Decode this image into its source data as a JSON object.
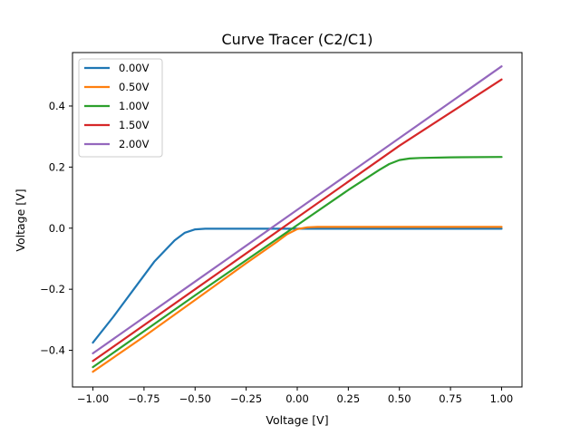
{
  "chart_data": {
    "type": "line",
    "title": "Curve Tracer (C2/C1)",
    "xlabel": "Voltage [V]",
    "ylabel": "Voltage [V]",
    "xlim": [
      -1.1,
      1.1
    ],
    "ylim": [
      -0.52,
      0.575
    ],
    "xticks": [
      -1.0,
      -0.75,
      -0.5,
      -0.25,
      0.0,
      0.25,
      0.5,
      0.75,
      1.0
    ],
    "xtick_labels": [
      "−1.00",
      "−0.75",
      "−0.50",
      "−0.25",
      "0.00",
      "0.25",
      "0.50",
      "0.75",
      "1.00"
    ],
    "yticks": [
      -0.4,
      -0.2,
      0.0,
      0.2,
      0.4
    ],
    "ytick_labels": [
      "−0.4",
      "−0.2",
      "0.0",
      "0.2",
      "0.4"
    ],
    "grid": false,
    "legend_position": "top-left",
    "series": [
      {
        "name": "0.00V",
        "color": "#1f77b4",
        "x": [
          -1.0,
          -0.9,
          -0.8,
          -0.7,
          -0.6,
          -0.55,
          -0.5,
          -0.45,
          -0.4,
          -0.3,
          -0.2,
          0.0,
          0.5,
          1.0
        ],
        "y": [
          -0.375,
          -0.29,
          -0.2,
          -0.11,
          -0.04,
          -0.015,
          -0.004,
          -0.002,
          -0.002,
          -0.002,
          -0.002,
          -0.002,
          -0.002,
          -0.002
        ]
      },
      {
        "name": "0.50V",
        "color": "#ff7f0e",
        "x": [
          -1.0,
          -0.75,
          -0.5,
          -0.25,
          -0.1,
          -0.05,
          0.0,
          0.05,
          0.1,
          0.5,
          1.0
        ],
        "y": [
          -0.47,
          -0.355,
          -0.235,
          -0.115,
          -0.045,
          -0.02,
          -0.003,
          0.003,
          0.004,
          0.004,
          0.004
        ]
      },
      {
        "name": "1.00V",
        "color": "#2ca02c",
        "x": [
          -1.0,
          -0.5,
          0.0,
          0.25,
          0.4,
          0.45,
          0.5,
          0.55,
          0.6,
          0.75,
          1.0
        ],
        "y": [
          -0.455,
          -0.22,
          0.01,
          0.125,
          0.19,
          0.21,
          0.223,
          0.228,
          0.23,
          0.232,
          0.233
        ]
      },
      {
        "name": "1.50V",
        "color": "#d62728",
        "x": [
          -1.0,
          -0.5,
          0.0,
          0.5,
          1.0
        ],
        "y": [
          -0.435,
          -0.2,
          0.035,
          0.27,
          0.487
        ]
      },
      {
        "name": "2.00V",
        "color": "#9467bd",
        "x": [
          -1.0,
          -0.5,
          0.0,
          0.5,
          1.0
        ],
        "y": [
          -0.41,
          -0.175,
          0.06,
          0.295,
          0.53
        ]
      }
    ]
  }
}
